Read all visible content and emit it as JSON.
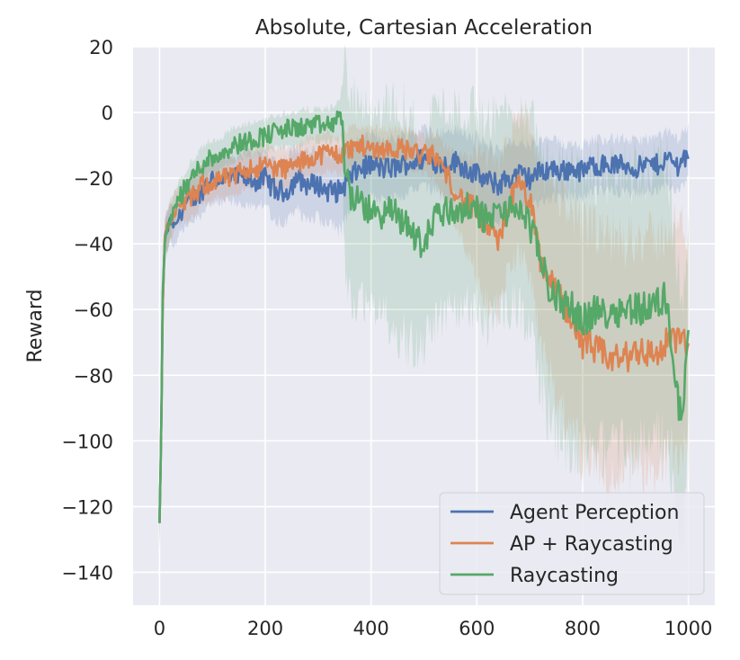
{
  "chart_data": {
    "type": "line",
    "title": "Absolute, Cartesian Acceleration",
    "xlabel": "",
    "ylabel": "Reward",
    "xlim": [
      -50,
      1050
    ],
    "ylim": [
      -150,
      20
    ],
    "xticks": [
      0,
      200,
      400,
      600,
      800,
      1000
    ],
    "yticks": [
      20,
      0,
      -20,
      -40,
      -60,
      -80,
      -100,
      -120,
      -140
    ],
    "ytick_labels": [
      "20",
      "0",
      "−20",
      "−40",
      "−60",
      "−80",
      "−100",
      "−120",
      "−140"
    ],
    "grid": true,
    "background": "#eaeaf2",
    "legend_position": "lower right",
    "series": [
      {
        "name": "Agent Perception",
        "color": "#4c72b0",
        "x": [
          0,
          3,
          6,
          10,
          15,
          20,
          30,
          40,
          50,
          60,
          70,
          80,
          90,
          100,
          120,
          140,
          160,
          180,
          200,
          220,
          240,
          260,
          280,
          300,
          320,
          340,
          360,
          380,
          400,
          420,
          440,
          460,
          480,
          500,
          520,
          540,
          560,
          580,
          600,
          620,
          640,
          660,
          680,
          700,
          720,
          740,
          760,
          780,
          800,
          820,
          840,
          860,
          880,
          900,
          920,
          940,
          960,
          980,
          1000
        ],
        "values": [
          -125,
          -100,
          -60,
          -38,
          -36,
          -33,
          -35,
          -30,
          -28,
          -27,
          -25,
          -24,
          -21,
          -20,
          -20,
          -20,
          -20,
          -21,
          -20,
          -24,
          -24,
          -20,
          -22,
          -22,
          -24,
          -24,
          -20,
          -17,
          -16,
          -17,
          -17,
          -16,
          -15,
          -14,
          -15,
          -16,
          -15,
          -17,
          -19,
          -21,
          -22,
          -20,
          -19,
          -20,
          -18,
          -17,
          -18,
          -17,
          -18,
          -16,
          -16,
          -16,
          -16,
          -17,
          -16,
          -16,
          -14,
          -16,
          -12
        ],
        "band": [
          8,
          8,
          8,
          6,
          6,
          6,
          6,
          6,
          7,
          7,
          7,
          7,
          7,
          7,
          7,
          7,
          8,
          8,
          8,
          9,
          10,
          10,
          10,
          10,
          11,
          12,
          10,
          9,
          9,
          9,
          9,
          9,
          9,
          9,
          9,
          10,
          10,
          10,
          11,
          11,
          11,
          10,
          10,
          10,
          9,
          9,
          8,
          8,
          8,
          8,
          8,
          8,
          8,
          8,
          8,
          8,
          8,
          8,
          8
        ]
      },
      {
        "name": "AP + Raycasting",
        "color": "#dd8452",
        "x": [
          0,
          3,
          6,
          10,
          15,
          20,
          30,
          40,
          50,
          60,
          70,
          80,
          90,
          100,
          120,
          140,
          160,
          180,
          200,
          220,
          240,
          260,
          280,
          300,
          320,
          340,
          360,
          380,
          400,
          420,
          440,
          460,
          480,
          500,
          520,
          540,
          560,
          580,
          600,
          620,
          640,
          660,
          680,
          700,
          720,
          740,
          760,
          780,
          800,
          820,
          840,
          860,
          880,
          900,
          920,
          940,
          960,
          980,
          1000
        ],
        "values": [
          -125,
          -100,
          -60,
          -38,
          -35,
          -33,
          -30,
          -28,
          -27,
          -26,
          -25,
          -22,
          -22,
          -21,
          -20,
          -20,
          -17,
          -17,
          -16,
          -17,
          -17,
          -16,
          -14,
          -13,
          -12,
          -13,
          -11,
          -10,
          -11,
          -11,
          -11,
          -11,
          -12,
          -13,
          -13,
          -18,
          -24,
          -28,
          -30,
          -35,
          -40,
          -28,
          -22,
          -27,
          -45,
          -52,
          -57,
          -63,
          -70,
          -72,
          -74,
          -75,
          -75,
          -72,
          -73,
          -74,
          -70,
          -68,
          -72
        ],
        "band": [
          8,
          8,
          8,
          6,
          6,
          6,
          6,
          6,
          6,
          6,
          6,
          6,
          6,
          6,
          6,
          6,
          6,
          6,
          6,
          6,
          6,
          6,
          6,
          6,
          6,
          6,
          6,
          6,
          6,
          6,
          6,
          6,
          6,
          6,
          7,
          8,
          10,
          14,
          20,
          22,
          22,
          20,
          22,
          22,
          25,
          30,
          32,
          34,
          35,
          36,
          36,
          37,
          36,
          35,
          35,
          35,
          35,
          34,
          34
        ]
      },
      {
        "name": "Raycasting",
        "color": "#55a868",
        "x": [
          0,
          3,
          6,
          10,
          15,
          20,
          30,
          40,
          50,
          60,
          70,
          80,
          90,
          100,
          120,
          140,
          160,
          180,
          200,
          220,
          240,
          260,
          280,
          300,
          320,
          340,
          345,
          350,
          360,
          380,
          400,
          420,
          440,
          460,
          480,
          500,
          520,
          540,
          560,
          580,
          600,
          620,
          640,
          660,
          680,
          700,
          720,
          740,
          760,
          780,
          800,
          820,
          840,
          860,
          880,
          900,
          920,
          940,
          960,
          970,
          980,
          990,
          1000
        ],
        "values": [
          -125,
          -100,
          -55,
          -40,
          -36,
          -33,
          -28,
          -25,
          -23,
          -20,
          -18,
          -16,
          -14,
          -14,
          -12,
          -10,
          -9,
          -8,
          -7,
          -6,
          -5,
          -5,
          -4,
          -4,
          -4,
          -2,
          -1,
          -15,
          -25,
          -28,
          -30,
          -31,
          -30,
          -33,
          -37,
          -41,
          -31,
          -30,
          -30,
          -29,
          -30,
          -33,
          -30,
          -30,
          -29,
          -34,
          -44,
          -55,
          -57,
          -60,
          -63,
          -61,
          -61,
          -60,
          -60,
          -59,
          -60,
          -58,
          -56,
          -75,
          -88,
          -92,
          -65
        ],
        "band": [
          8,
          8,
          8,
          6,
          6,
          6,
          5,
          5,
          5,
          5,
          5,
          5,
          5,
          5,
          5,
          5,
          5,
          5,
          5,
          5,
          5,
          5,
          5,
          5,
          5,
          6,
          8,
          30,
          32,
          30,
          28,
          30,
          34,
          36,
          34,
          30,
          34,
          32,
          30,
          31,
          30,
          31,
          30,
          30,
          30,
          32,
          38,
          40,
          42,
          42,
          42,
          42,
          42,
          42,
          42,
          42,
          42,
          42,
          42,
          42,
          40,
          34,
          30
        ]
      }
    ]
  }
}
